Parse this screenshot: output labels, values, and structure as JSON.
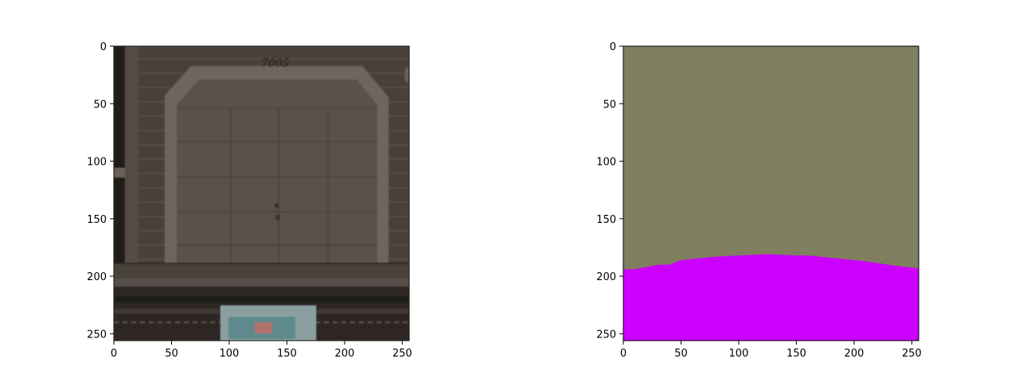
{
  "chart_data": [
    {
      "type": "image",
      "title": "",
      "xlabel": "",
      "ylabel": "",
      "xlim": [
        0,
        256
      ],
      "ylim": [
        256,
        0
      ],
      "xticks": [
        0,
        50,
        100,
        150,
        200,
        250
      ],
      "yticks": [
        0,
        50,
        100,
        150,
        200,
        250
      ],
      "grid": false,
      "content": "photo-garage-door",
      "visible_text": "7005",
      "colors": {
        "siding": "#4a4138",
        "door": "#5a514a",
        "trim": "#6e655c",
        "ground": "#2d2824"
      }
    },
    {
      "type": "segmentation-mask",
      "title": "",
      "xlabel": "",
      "ylabel": "",
      "xlim": [
        0,
        256
      ],
      "ylim": [
        256,
        0
      ],
      "xticks": [
        0,
        50,
        100,
        150,
        200,
        250
      ],
      "yticks": [
        0,
        50,
        100,
        150,
        200,
        250
      ],
      "grid": false,
      "classes": [
        {
          "color": "#807f5f"
        },
        {
          "color": "#cc00ff"
        }
      ],
      "boundary": {
        "x": [
          0,
          10,
          20,
          30,
          40,
          50,
          60,
          70,
          80,
          90,
          100,
          110,
          120,
          130,
          140,
          150,
          160,
          170,
          180,
          190,
          200,
          210,
          220,
          230,
          240,
          256
        ],
        "y": [
          194,
          194,
          192,
          190,
          190,
          186,
          185,
          184,
          183,
          182.5,
          182,
          181.5,
          181,
          181,
          181.5,
          182,
          182,
          183,
          184,
          185,
          186,
          187,
          188.5,
          190,
          191.5,
          193
        ]
      }
    }
  ]
}
